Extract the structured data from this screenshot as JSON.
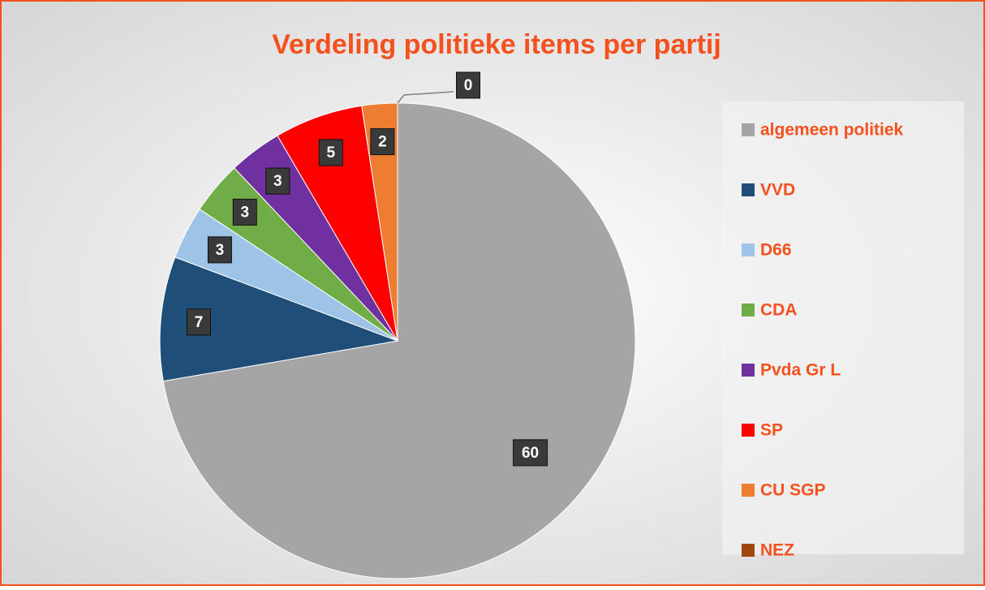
{
  "chart_data": {
    "type": "pie",
    "title": "Verdeling politieke items per partij",
    "categories": [
      "algemeen politiek",
      "VVD",
      "D66",
      "CDA",
      "Pvda Gr L",
      "SP",
      "CU SGP",
      "NEZ"
    ],
    "values": [
      60,
      7,
      3,
      3,
      3,
      5,
      2,
      0
    ],
    "colors": [
      "#a5a5a5",
      "#1f4e79",
      "#9dc3e6",
      "#70ad47",
      "#7030a0",
      "#ff0000",
      "#ed7d31",
      "#9e480e"
    ],
    "legend": "right"
  }
}
